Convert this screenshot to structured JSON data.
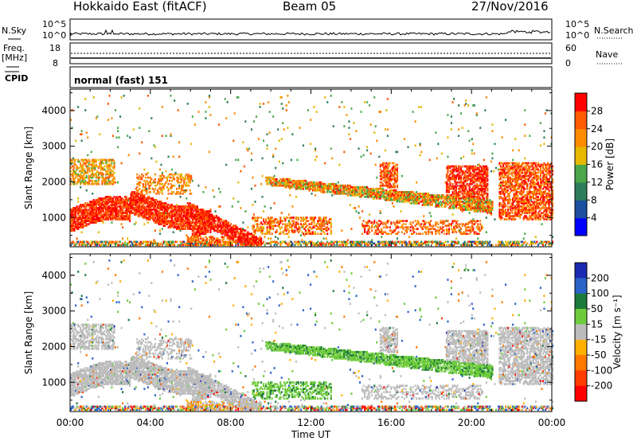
{
  "header": {
    "station": "Hokkaido East (fitACF)",
    "beam": "Beam 05",
    "date": "27/Nov/2016"
  },
  "panels": {
    "nsky_label": "N.Sky",
    "nsky_ticks": [
      "10^5",
      "10^0"
    ],
    "nsearch_label": "N.Search",
    "freq_label_top": "Freq.",
    "freq_label_unit": "[MHz]",
    "freq_ticks": [
      "18",
      "8"
    ],
    "nave_ticks": [
      "60",
      "0"
    ],
    "nave_label": "Nave",
    "cpid_label": "CPID",
    "cpid_value": "normal (fast) 151"
  },
  "colors": {
    "power": [
      "#0000ff",
      "#1c4fa0",
      "#2e7d5a",
      "#4aa84a",
      "#e6b800",
      "#ff8c00",
      "#ff5a00",
      "#ff0000"
    ],
    "velocity": [
      "#1a2ab0",
      "#2a62c8",
      "#1c7a3a",
      "#6ecb3c",
      "#bcbcbc",
      "#ffb000",
      "#ff7800",
      "#ff3c00",
      "#ff0000"
    ]
  },
  "chart_data": [
    {
      "type": "heatmap",
      "panel": "power",
      "ylabel": "Slant Range [km]",
      "yticks": [
        1000,
        2000,
        3000,
        4000
      ],
      "ylim": [
        180,
        4600
      ],
      "xlim": [
        0,
        24
      ],
      "xticks": [
        "00:00",
        "04:00",
        "08:00",
        "12:00",
        "16:00",
        "20:00",
        "00:00"
      ],
      "colorbar_label": "Power [dB]",
      "colorbar_ticks": [
        4,
        8,
        12,
        16,
        20,
        24,
        28
      ],
      "colorbar_range": [
        0,
        32
      ]
    },
    {
      "type": "heatmap",
      "panel": "velocity",
      "ylabel": "Slant Range [km]",
      "yticks": [
        1000,
        2000,
        3000,
        4000
      ],
      "ylim": [
        180,
        4600
      ],
      "xlim": [
        0,
        24
      ],
      "xticks": [
        "00:00",
        "04:00",
        "08:00",
        "12:00",
        "16:00",
        "20:00",
        "00:00"
      ],
      "xlabel": "Time UT",
      "colorbar_label": "Velocity [m s⁻¹]",
      "colorbar_ticks": [
        "200",
        "100",
        "50",
        "15",
        "-15",
        "-50",
        "-100",
        "-200"
      ]
    }
  ]
}
